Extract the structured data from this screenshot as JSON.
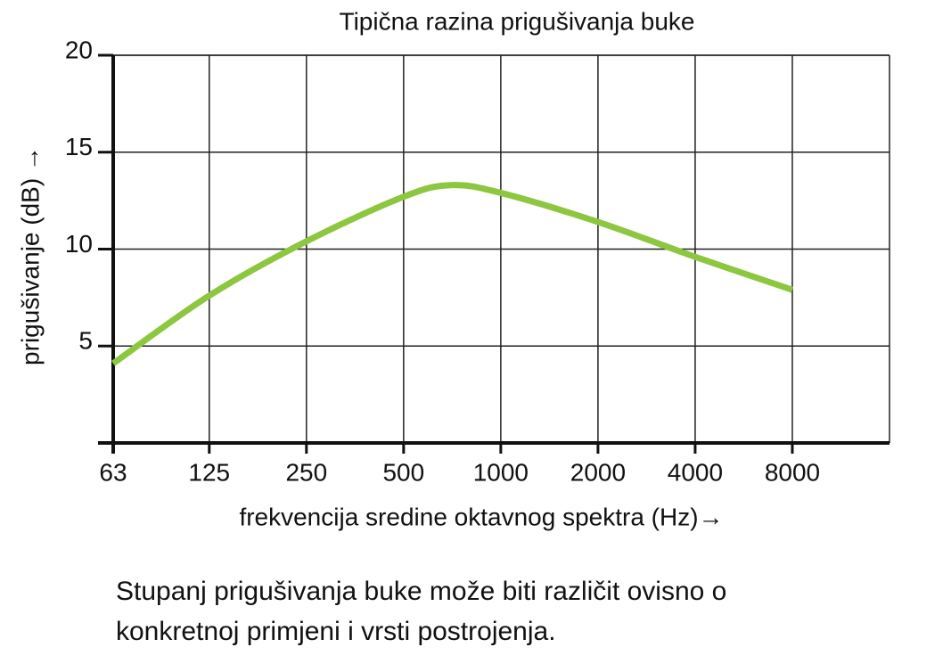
{
  "chart_data": {
    "type": "line",
    "title": "Tipična razina prigušivanja buke",
    "xlabel": "frekvencija sredine oktavnog spektra (Hz)→",
    "ylabel": "prigušivanje (dB) →",
    "x": [
      63,
      125,
      250,
      500,
      700,
      1000,
      2000,
      4000,
      8000
    ],
    "series": [
      {
        "name": "prigušivanje",
        "color": "#8dc63f",
        "values": [
          4.1,
          7.6,
          10.4,
          12.7,
          13.3,
          12.9,
          11.4,
          9.6,
          7.9
        ]
      }
    ],
    "xscale": "log",
    "xlim": [
      63,
      16000
    ],
    "xticks": [
      63,
      125,
      250,
      500,
      1000,
      2000,
      4000,
      8000
    ],
    "ylim": [
      0,
      20
    ],
    "yticks": [
      5,
      10,
      15,
      20
    ],
    "grid": true,
    "note": [
      "Stupanj prigušivanja buke može biti različit ovisno o",
      "konkretnoj primjeni i vrsti postrojenja."
    ]
  }
}
